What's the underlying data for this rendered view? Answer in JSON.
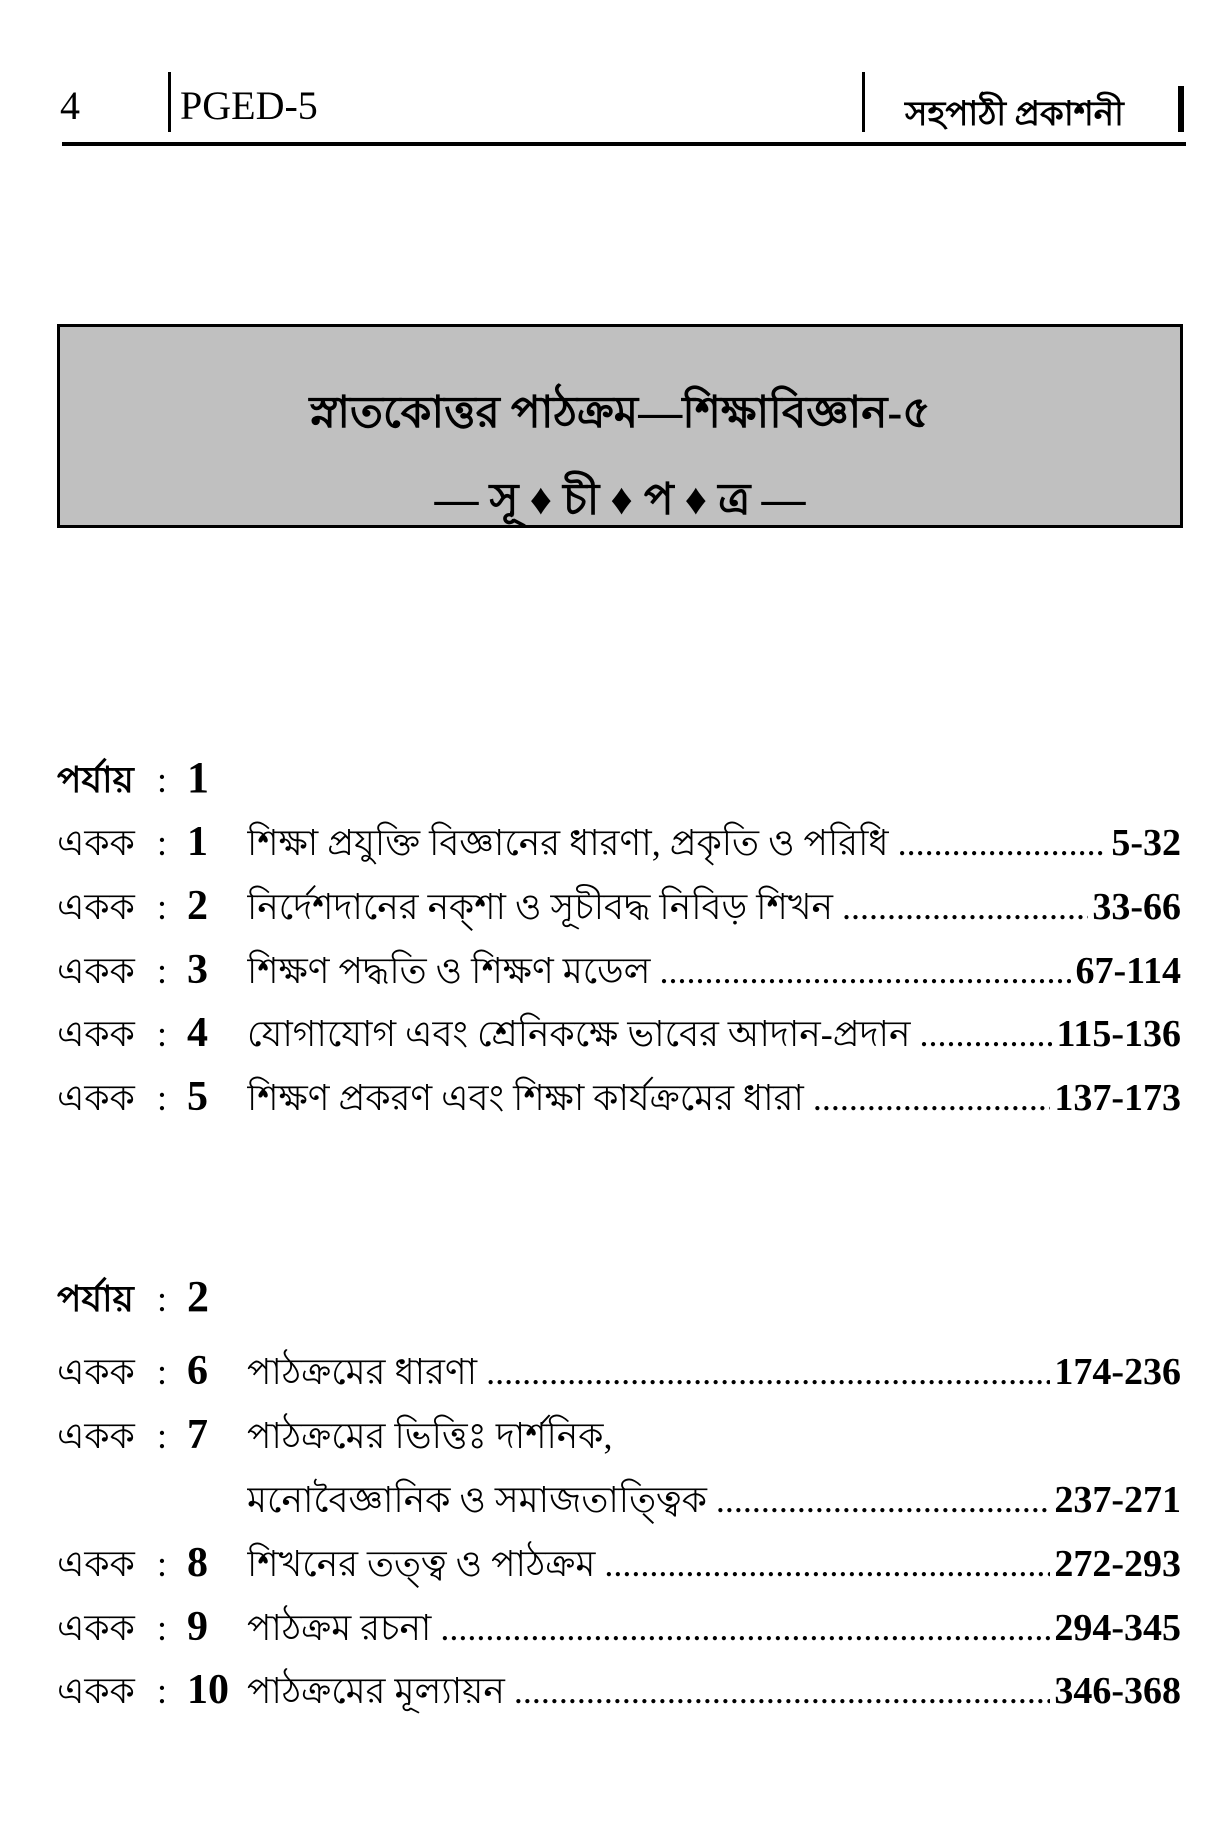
{
  "header": {
    "page_number": "4",
    "course_code": "PGED-5",
    "publisher": "সহপাঠী প্রকাশনী"
  },
  "title_box": {
    "title": "স্নাতকোত্তর পাঠক্রম—শিক্ষাবিজ্ঞান-৫",
    "subtitle": "— সূ ♦ চী ♦ প ♦ ত্র —"
  },
  "parts": [
    {
      "label": "পর্যায়",
      "number": "1",
      "units": [
        {
          "label": "একক",
          "number": "1",
          "title": "শিক্ষা প্রযুক্তি বিজ্ঞানের ধারণা, প্রকৃতি ও পরিধি",
          "pages": "5-32"
        },
        {
          "label": "একক",
          "number": "2",
          "title": "নির্দেশদানের নক্শা ও সূচীবদ্ধ নিবিড় শিখন",
          "pages": "33-66"
        },
        {
          "label": "একক",
          "number": "3",
          "title": "শিক্ষণ পদ্ধতি ও শিক্ষণ মডেল",
          "pages": "67-114"
        },
        {
          "label": "একক",
          "number": "4",
          "title": "যোগাযোগ এবং শ্রেনিকক্ষে ভাবের আদান-প্রদান",
          "pages": "115-136"
        },
        {
          "label": "একক",
          "number": "5",
          "title": "শিক্ষণ প্রকরণ এবং শিক্ষা কার্যক্রমের ধারা",
          "pages": "137-173"
        }
      ]
    },
    {
      "label": "পর্যায়",
      "number": "2",
      "units": [
        {
          "label": "একক",
          "number": "6",
          "title": "পাঠক্রমের ধারণা",
          "pages": "174-236"
        },
        {
          "label": "একক",
          "number": "7",
          "title": "পাঠক্রমের ভিত্তিঃ দার্শনিক,",
          "title_line2": "মনোবৈজ্ঞানিক ও সমাজতাত্ত্বিক",
          "pages": "237-271"
        },
        {
          "label": "একক",
          "number": "8",
          "title": "শিখনের তত্ত্ব ও পাঠক্রম",
          "pages": "272-293"
        },
        {
          "label": "একক",
          "number": "9",
          "title": "পাঠক্রম রচনা",
          "pages": "294-345"
        },
        {
          "label": "একক",
          "number": "10",
          "title": "পাঠক্রমের মূল্যায়ন",
          "pages": "346-368"
        }
      ]
    }
  ]
}
